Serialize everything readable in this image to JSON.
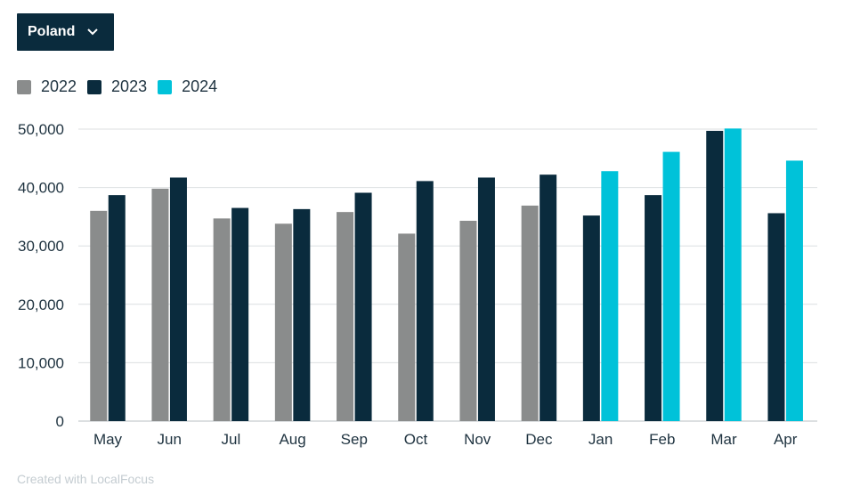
{
  "filter": {
    "selected": "Poland"
  },
  "colors": {
    "2022": "#8a8c8c",
    "2023": "#0a2b3d",
    "2024": "#00c2d9",
    "grid": "#dcdfe1",
    "text": "#1f3340"
  },
  "credit": "Created with LocalFocus",
  "chart_data": {
    "type": "bar",
    "categories": [
      "May",
      "Jun",
      "Jul",
      "Aug",
      "Sep",
      "Oct",
      "Nov",
      "Dec",
      "Jan",
      "Feb",
      "Mar",
      "Apr"
    ],
    "series": [
      {
        "name": "2022",
        "color": "#8a8c8c",
        "values": [
          36000,
          39800,
          34700,
          33800,
          35800,
          32100,
          34300,
          36900,
          null,
          null,
          null,
          null
        ]
      },
      {
        "name": "2023",
        "color": "#0a2b3d",
        "values": [
          38700,
          41700,
          36500,
          36300,
          39100,
          41100,
          41700,
          42200,
          35200,
          38700,
          49700,
          35600
        ]
      },
      {
        "name": "2024",
        "color": "#00c2d9",
        "values": [
          null,
          null,
          null,
          null,
          null,
          null,
          null,
          null,
          42800,
          46100,
          50100,
          44600
        ]
      }
    ],
    "ylim": [
      0,
      50000
    ],
    "yticks": [
      0,
      10000,
      20000,
      30000,
      40000,
      50000
    ],
    "ytick_labels": [
      "0",
      "10,000",
      "20,000",
      "30,000",
      "40,000",
      "50,000"
    ],
    "grid": true,
    "legend": "top-left",
    "xlabel": "",
    "ylabel": ""
  }
}
